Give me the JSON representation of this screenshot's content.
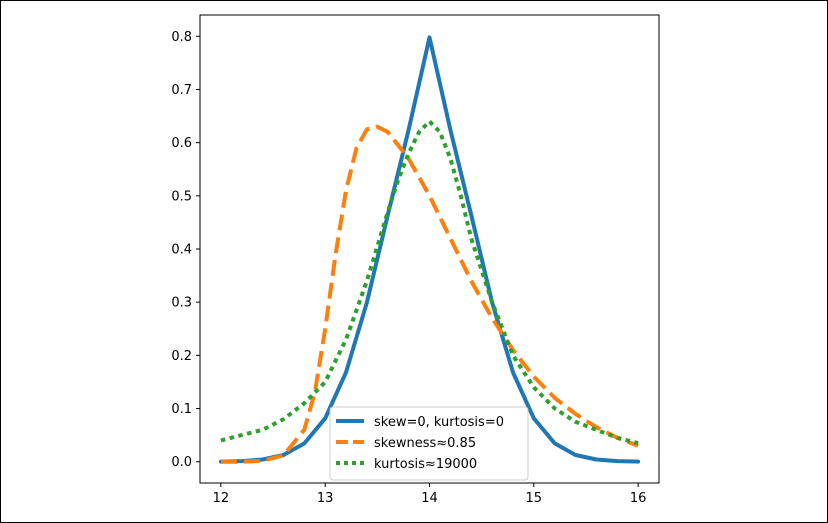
{
  "chart_data": {
    "type": "line",
    "title": "",
    "xlabel": "",
    "ylabel": "",
    "xlim": [
      11.8,
      16.2
    ],
    "ylim": [
      -0.04,
      0.84
    ],
    "x_ticks": [
      12,
      13,
      14,
      15,
      16
    ],
    "x_tick_labels": [
      "12",
      "13",
      "14",
      "15",
      "16"
    ],
    "y_ticks": [
      0.0,
      0.1,
      0.2,
      0.3,
      0.4,
      0.5,
      0.6,
      0.7,
      0.8
    ],
    "y_tick_labels": [
      "0.0",
      "0.1",
      "0.2",
      "0.3",
      "0.4",
      "0.5",
      "0.6",
      "0.7",
      "0.8"
    ],
    "grid": false,
    "legend_position": "bottom-center",
    "series": [
      {
        "name": "skew=0, kurtosis=0",
        "color": "#1f77b4",
        "style": "solid",
        "x": [
          12.0,
          12.2,
          12.4,
          12.6,
          12.8,
          13.0,
          13.2,
          13.4,
          13.6,
          13.8,
          14.0,
          14.2,
          14.4,
          14.6,
          14.8,
          15.0,
          15.2,
          15.4,
          15.6,
          15.8,
          16.0
        ],
        "y": [
          0.0003,
          0.0012,
          0.0041,
          0.0127,
          0.0345,
          0.0817,
          0.1679,
          0.2996,
          0.4641,
          0.6239,
          0.7979,
          0.6239,
          0.4641,
          0.2996,
          0.1679,
          0.0817,
          0.0345,
          0.0127,
          0.0041,
          0.0012,
          0.0003
        ]
      },
      {
        "name": "skewness≈0.85",
        "color": "#ff7f0e",
        "style": "dashed",
        "x": [
          12.0,
          12.2,
          12.4,
          12.6,
          12.8,
          12.9,
          13.0,
          13.1,
          13.2,
          13.3,
          13.4,
          13.5,
          13.6,
          13.8,
          14.0,
          14.2,
          14.4,
          14.6,
          14.8,
          15.0,
          15.2,
          15.4,
          15.6,
          15.8,
          16.0
        ],
        "y": [
          0.0,
          0.0,
          0.002,
          0.012,
          0.06,
          0.13,
          0.25,
          0.39,
          0.51,
          0.59,
          0.625,
          0.63,
          0.62,
          0.57,
          0.5,
          0.42,
          0.34,
          0.27,
          0.21,
          0.16,
          0.12,
          0.09,
          0.065,
          0.045,
          0.03
        ]
      },
      {
        "name": "kurtosis≈19000",
        "color": "#2ca02c",
        "style": "dotted",
        "x": [
          12.0,
          12.2,
          12.4,
          12.6,
          12.8,
          13.0,
          13.2,
          13.4,
          13.6,
          13.7,
          13.8,
          13.9,
          14.0,
          14.1,
          14.2,
          14.3,
          14.4,
          14.6,
          14.8,
          15.0,
          15.2,
          15.4,
          15.6,
          15.8,
          16.0
        ],
        "y": [
          0.04,
          0.05,
          0.06,
          0.08,
          0.11,
          0.15,
          0.23,
          0.34,
          0.47,
          0.53,
          0.58,
          0.62,
          0.64,
          0.62,
          0.57,
          0.5,
          0.42,
          0.3,
          0.2,
          0.14,
          0.1,
          0.075,
          0.06,
          0.045,
          0.035
        ]
      }
    ]
  }
}
